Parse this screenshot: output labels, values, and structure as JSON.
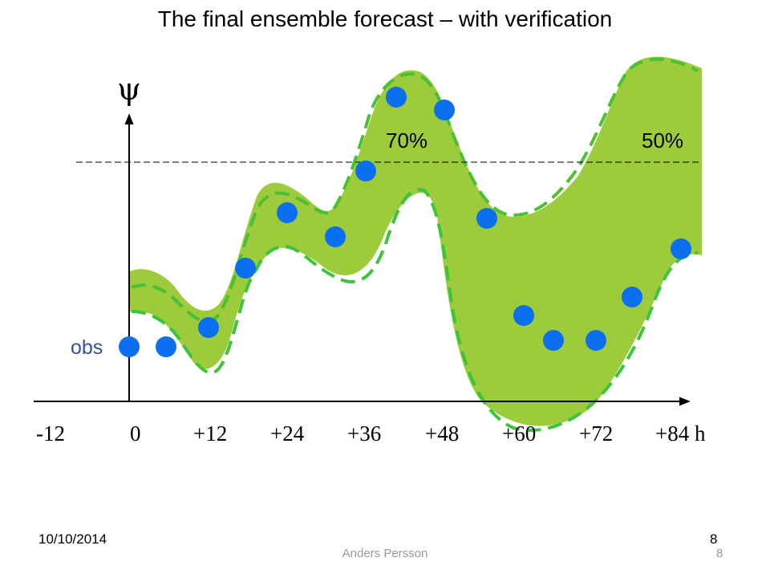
{
  "title": "The final ensemble forecast – with verification",
  "y_symbol": "ψ",
  "x_ticks": [
    "-12",
    "0",
    "+12",
    "+24",
    "+36",
    "+48",
    "+60",
    "+72",
    "+84 h"
  ],
  "probability_labels": [
    "70%",
    "50%"
  ],
  "obs_label": "obs",
  "footer": {
    "date": "10/10/2014",
    "page_number": "8",
    "author": "Anders Persson",
    "page_number_2": "8"
  },
  "colors": {
    "ensemble_fill": "#9ccc3c",
    "ensemble_dashed_outline": "#3cc43c",
    "observation_points": "#0b6ff0",
    "threshold_line": "#000000"
  }
}
